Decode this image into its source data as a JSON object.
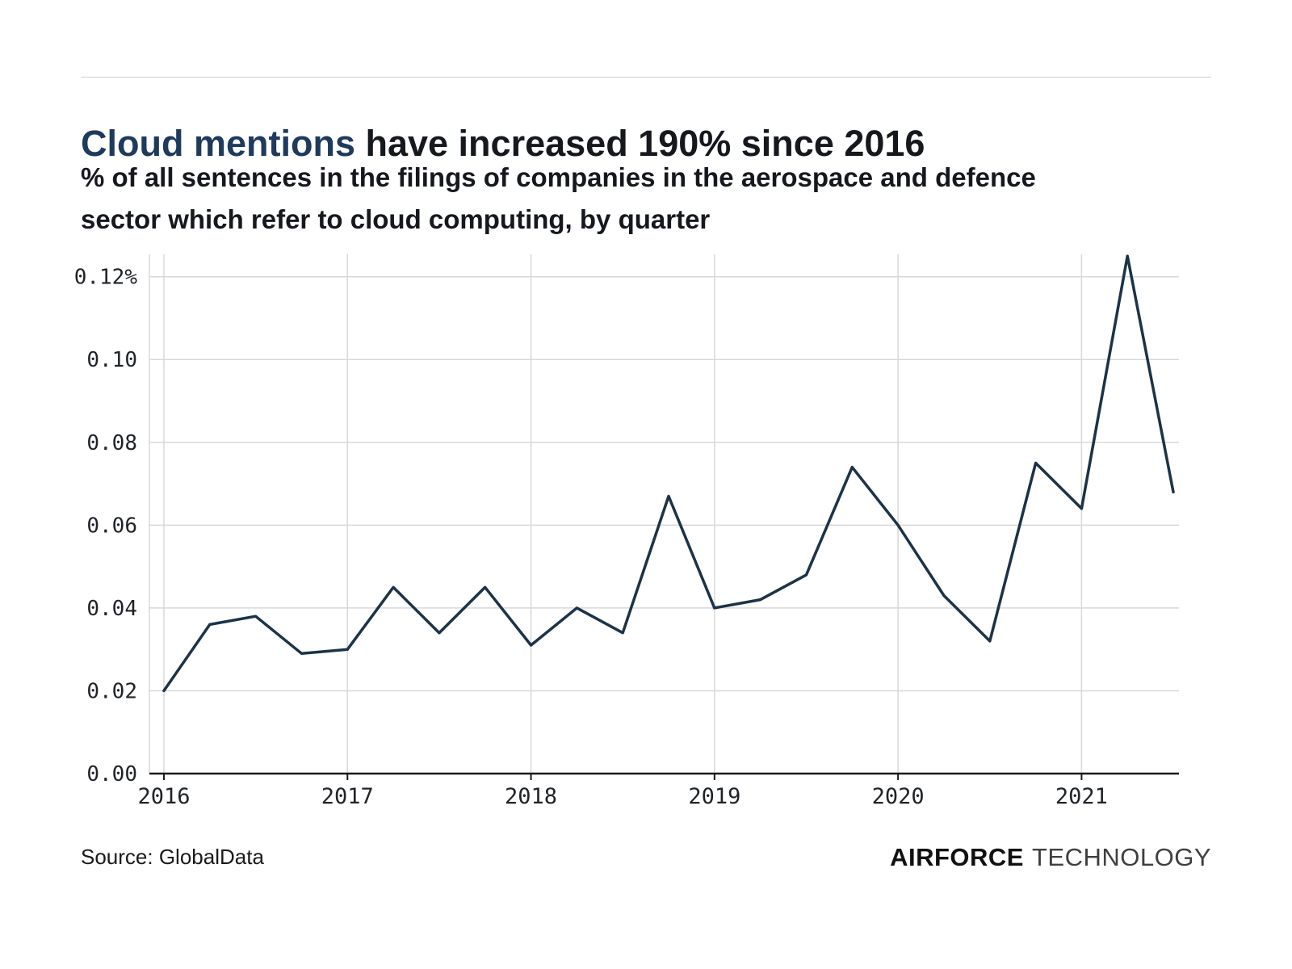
{
  "page": {
    "title_highlight": "Cloud mentions",
    "title_rest": " have increased 190% since 2016",
    "subtitle_lines": [
      "% of all sentences in the filings of companies in the aerospace and defence",
      "sector which refer to cloud computing, by quarter"
    ],
    "source": "Source: GlobalData",
    "brand_bold": "AIRFORCE",
    "brand_light": "TECHNOLOGY"
  },
  "colors": {
    "line": "#1c3347",
    "title_highlight": "#1e3a5c",
    "grid": "#d8d8d8",
    "axis": "#1a1a1a",
    "text": "#1f2328"
  },
  "chart_data": {
    "type": "line",
    "title": "Cloud mentions have increased 190% since 2016",
    "subtitle": "% of all sentences in the filings of companies in the aerospace and defence sector which refer to cloud computing, by quarter",
    "x": [
      "2016 Q1",
      "2016 Q2",
      "2016 Q3",
      "2016 Q4",
      "2017 Q1",
      "2017 Q2",
      "2017 Q3",
      "2017 Q4",
      "2018 Q1",
      "2018 Q2",
      "2018 Q3",
      "2018 Q4",
      "2019 Q1",
      "2019 Q2",
      "2019 Q3",
      "2019 Q4",
      "2020 Q1",
      "2020 Q2",
      "2020 Q3",
      "2020 Q4",
      "2021 Q1",
      "2021 Q2",
      "2021 Q3"
    ],
    "values": [
      0.02,
      0.036,
      0.038,
      0.029,
      0.03,
      0.045,
      0.034,
      0.045,
      0.031,
      0.04,
      0.034,
      0.067,
      0.04,
      0.042,
      0.048,
      0.074,
      0.06,
      0.043,
      0.032,
      0.075,
      0.064,
      0.125,
      0.068
    ],
    "x_labels": [
      "2016",
      "2017",
      "2018",
      "2019",
      "2020",
      "2021"
    ],
    "quarters_per_year": 4,
    "yticks": [
      0,
      0.02,
      0.04,
      0.06,
      0.08,
      0.1,
      0.12
    ],
    "ytick_labels": [
      "0.00",
      "0.02",
      "0.04",
      "0.06",
      "0.08",
      "0.10",
      "0.12%"
    ],
    "ylim": [
      0,
      0.1254
    ],
    "grid": true,
    "legend": false
  }
}
